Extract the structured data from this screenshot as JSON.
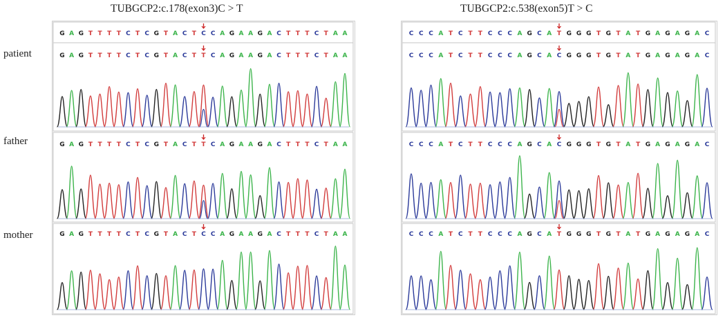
{
  "titles": {
    "left": "TUBGCP2:c.178(exon3)C > T",
    "right": "TUBGCP2:c.538(exon5)T > C"
  },
  "row_labels": [
    "patient",
    "father",
    "mother"
  ],
  "colors": {
    "A": "#3cb44b",
    "C": "#2b3a9a",
    "G": "#222222",
    "T": "#d23c3c",
    "marker": "#cc2222"
  },
  "panels": [
    {
      "id": "left",
      "reference": "GAGTTTTCTCGTACTCCAGAAGACTTTCTAA",
      "variant_index": 15,
      "rows": [
        {
          "person": "patient",
          "sequence": "GAGTTTTCTCGTACTTCAGAAGACTTTCTAA"
        },
        {
          "person": "father",
          "sequence": "GAGTTTTCTCGTACTTCAGAAGACTTTCTAA"
        },
        {
          "person": "mother",
          "sequence": "GAGTTTTCTCGTACTCCAGAAGACTTTCTAA"
        }
      ]
    },
    {
      "id": "right",
      "reference": "CCCATCTTCCCAGCATGGGTGTATGAGAGAC",
      "variant_index": 15,
      "rows": [
        {
          "person": "patient",
          "sequence": "CCCATCTTCCCAGCACGGGTGTATGAGAGAC"
        },
        {
          "person": "father",
          "sequence": "CCCATCTTCCCAGCACGGGTGTATGAGAGAC"
        },
        {
          "person": "mother",
          "sequence": "CCCATCTTCCCAGCATGGGTGTATGAGAGAC"
        }
      ]
    }
  ]
}
